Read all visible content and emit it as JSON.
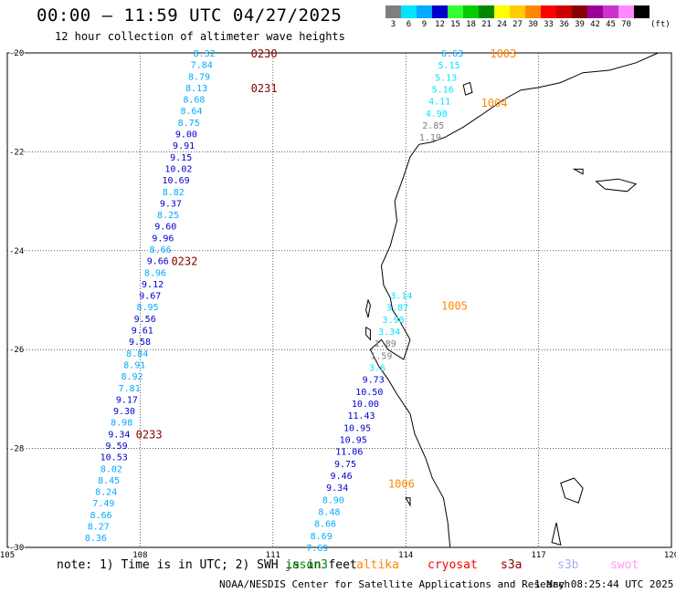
{
  "header": {
    "title": "00:00 — 11:59 UTC 04/27/2025",
    "subtitle": "12 hour collection of altimeter wave heights"
  },
  "legend": {
    "unit": "(ft)",
    "bins": [
      {
        "label": "3",
        "color": "#7f7f7f"
      },
      {
        "label": "6",
        "color": "#00e5ff"
      },
      {
        "label": "9",
        "color": "#00aaff"
      },
      {
        "label": "12",
        "color": "#0000cc"
      },
      {
        "label": "15",
        "color": "#33ff33"
      },
      {
        "label": "18",
        "color": "#00cc00"
      },
      {
        "label": "21",
        "color": "#008800"
      },
      {
        "label": "24",
        "color": "#ffff00"
      },
      {
        "label": "27",
        "color": "#ffcc00"
      },
      {
        "label": "30",
        "color": "#ff8800"
      },
      {
        "label": "33",
        "color": "#ff0000"
      },
      {
        "label": "36",
        "color": "#cc0000"
      },
      {
        "label": "39",
        "color": "#880000"
      },
      {
        "label": "42",
        "color": "#990099"
      },
      {
        "label": "45",
        "color": "#cc33cc"
      },
      {
        "label": "70",
        "color": "#ff88ff"
      },
      {
        "label": "",
        "color": "#000000"
      }
    ]
  },
  "axes": {
    "lon_ticks": [
      "105",
      "108",
      "111",
      "114",
      "117",
      "120"
    ],
    "lat_ticks": [
      "-20",
      "-22",
      "-24",
      "-26",
      "-28",
      "-30"
    ]
  },
  "tracks": [
    {
      "lon_start": 109.45,
      "lat_start": -20.0,
      "lon_end": 107.0,
      "lat_end": -29.8,
      "values": [
        "8.32",
        "7.84",
        "8.79",
        "8.13",
        "8.68",
        "8.64",
        "8.75",
        "9.00",
        "9.91",
        "9.15",
        "10.02",
        "10.69",
        "8.82",
        "9.37",
        "8.25",
        "9.60",
        "9.96",
        "8.66",
        "9.66",
        "8.96",
        "9.12",
        "9.67",
        "8.95",
        "9.56",
        "9.61",
        "9.58",
        "8.84",
        "8.91",
        "8.92",
        "7.81",
        "9.17",
        "9.30",
        "8.98",
        "9.34",
        "9.59",
        "10.53",
        "8.02",
        "8.45",
        "8.24",
        "7.49",
        "8.66",
        "8.27",
        "8.36"
      ]
    },
    {
      "lon_start": 115.05,
      "lat_start": -20.0,
      "lon_end": 114.55,
      "lat_end": -21.7,
      "values": [
        "6.63",
        "5.15",
        "5.13",
        "5.16",
        "4.11",
        "4.98",
        "2.85",
        "1.19"
      ]
    },
    {
      "lon_start": 113.9,
      "lat_start": -24.9,
      "lon_end": 112.0,
      "lat_end": -30.0,
      "values": [
        "3.14",
        "3.87",
        "3.90",
        "3.34",
        "1.89",
        "1.59",
        "3.6",
        "9.73",
        "10.50",
        "10.00",
        "11.43",
        "10.95",
        "10.95",
        "11.06",
        "9.75",
        "9.46",
        "9.34",
        "8.90",
        "8.48",
        "8.66",
        "8.69",
        "7.69"
      ]
    }
  ],
  "time_labels": [
    {
      "text": "0230",
      "lon": 110.8,
      "lat": -20.0,
      "color": "#880000"
    },
    {
      "text": "0231",
      "lon": 110.8,
      "lat": -20.7,
      "color": "#880000"
    },
    {
      "text": "0232",
      "lon": 109.0,
      "lat": -24.2,
      "color": "#880000"
    },
    {
      "text": "0233",
      "lon": 108.2,
      "lat": -27.7,
      "color": "#880000"
    },
    {
      "text": "1003",
      "lon": 116.2,
      "lat": -20.0,
      "color": "#ff8800"
    },
    {
      "text": "1004",
      "lon": 116.0,
      "lat": -21.0,
      "color": "#ff8800"
    },
    {
      "text": "1005",
      "lon": 115.1,
      "lat": -25.1,
      "color": "#ff8800"
    },
    {
      "text": "1006",
      "lon": 113.9,
      "lat": -28.7,
      "color": "#ff8800"
    }
  ],
  "footer": {
    "note": "note: 1) Time is in UTC; 2) SWH is in feet",
    "satellites": [
      {
        "name": "jason3",
        "color": "#008800"
      },
      {
        "name": "altika",
        "color": "#ff8800"
      },
      {
        "name": "cryosat",
        "color": "#ff0000"
      },
      {
        "name": "s3a",
        "color": "#880000"
      },
      {
        "name": "s3b",
        "color": "#aaaaff"
      },
      {
        "name": "swot",
        "color": "#ff99ff"
      }
    ],
    "credit": "NOAA/NESDIS Center for Satellite Applications and Research",
    "timestamp": "1 May 08:25:44 UTC 2025"
  }
}
